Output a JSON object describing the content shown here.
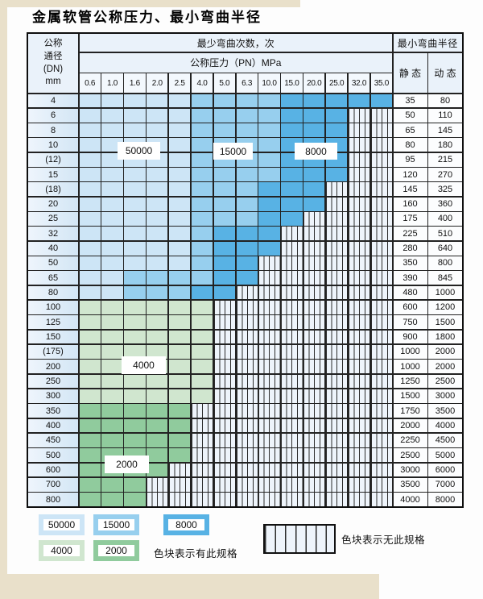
{
  "title": "金属软管公称压力、最小弯曲半径",
  "table": {
    "header": {
      "dn_lines": [
        "公称",
        "通径",
        "(DN)",
        "mm"
      ],
      "bend_cycles_label": "最少弯曲次数，次",
      "pressure_label": "公称压力（PN）MPa",
      "pressure_values": [
        "0.6",
        "1.0",
        "1.6",
        "2.0",
        "2.5",
        "4.0",
        "5.0",
        "6.3",
        "10.0",
        "15.0",
        "20.0",
        "25.0",
        "32.0",
        "35.0"
      ],
      "radius_label": "最小弯曲半径",
      "static_label": "静 态",
      "dynamic_label": "动 态"
    },
    "cell_codes": {
      "L": "50000",
      "M": "15000",
      "D": "8000",
      "g": "4000",
      "G": "2000",
      "H": "no-spec"
    },
    "rows": [
      {
        "dn": "4",
        "cells": "LLLLLMMMMDDDDD",
        "static": "35",
        "dynamic": "80"
      },
      {
        "dn": "6",
        "cells": "LLLLLMMMMDDDHH",
        "static": "50",
        "dynamic": "110"
      },
      {
        "dn": "8",
        "cells": "LLLLLMMMMDDDHH",
        "static": "65",
        "dynamic": "145"
      },
      {
        "dn": "10",
        "cells": "LLLLLMMMMDDDHH",
        "static": "80",
        "dynamic": "180"
      },
      {
        "dn": "(12)",
        "cells": "LLLLLMMMMDDDHH",
        "static": "95",
        "dynamic": "215"
      },
      {
        "dn": "15",
        "cells": "LLLLLMMMMDDDHH",
        "static": "120",
        "dynamic": "270"
      },
      {
        "dn": "(18)",
        "cells": "LLLLLMMMDDDHHH",
        "static": "145",
        "dynamic": "325"
      },
      {
        "dn": "20",
        "cells": "LLLLLMMMDDDHHH",
        "static": "160",
        "dynamic": "360"
      },
      {
        "dn": "25",
        "cells": "LLLLLMMMDDHHHH",
        "static": "175",
        "dynamic": "400"
      },
      {
        "dn": "32",
        "cells": "LLLLLMDDDHHHHH",
        "static": "225",
        "dynamic": "510"
      },
      {
        "dn": "40",
        "cells": "LLLLLMDDDHHHHH",
        "static": "280",
        "dynamic": "640"
      },
      {
        "dn": "50",
        "cells": "LLLLLMDDHHHHHH",
        "static": "350",
        "dynamic": "800"
      },
      {
        "dn": "65",
        "cells": "LLMMMMDDHHHHHH",
        "static": "390",
        "dynamic": "845"
      },
      {
        "dn": "80",
        "cells": "LLMMMDDHHHHHHH",
        "static": "480",
        "dynamic": "1000"
      },
      {
        "dn": "100",
        "cells": "ggggggHHHHHHHH",
        "static": "600",
        "dynamic": "1200"
      },
      {
        "dn": "125",
        "cells": "ggggggHHHHHHHH",
        "static": "750",
        "dynamic": "1500"
      },
      {
        "dn": "150",
        "cells": "ggggggHHHHHHHH",
        "static": "900",
        "dynamic": "1800"
      },
      {
        "dn": "(175)",
        "cells": "ggggggHHHHHHHH",
        "static": "1000",
        "dynamic": "2000"
      },
      {
        "dn": "200",
        "cells": "ggggggHHHHHHHH",
        "static": "1000",
        "dynamic": "2000"
      },
      {
        "dn": "250",
        "cells": "ggggggHHHHHHHH",
        "static": "1250",
        "dynamic": "2500"
      },
      {
        "dn": "300",
        "cells": "ggggggHHHHHHHH",
        "static": "1500",
        "dynamic": "3000"
      },
      {
        "dn": "350",
        "cells": "GGGGGHHHHHHHHH",
        "static": "1750",
        "dynamic": "3500"
      },
      {
        "dn": "400",
        "cells": "GGGGGHHHHHHHHH",
        "static": "2000",
        "dynamic": "4000"
      },
      {
        "dn": "450",
        "cells": "GGGGGHHHHHHHHH",
        "static": "2250",
        "dynamic": "4500"
      },
      {
        "dn": "500",
        "cells": "GGGGGHHHHHHHHH",
        "static": "2500",
        "dynamic": "5000"
      },
      {
        "dn": "600",
        "cells": "GGGGHHHHHHHHHH",
        "static": "3000",
        "dynamic": "6000"
      },
      {
        "dn": "700",
        "cells": "GGGHHHHHHHHHHH",
        "static": "3500",
        "dynamic": "7000"
      },
      {
        "dn": "800",
        "cells": "GGGHHHHHHHHHHH",
        "static": "4000",
        "dynamic": "8000"
      }
    ]
  },
  "overlay_labels": {
    "l50000": "50000",
    "l15000": "15000",
    "l8000": "8000",
    "l4000": "4000",
    "l2000": "2000"
  },
  "legend": {
    "items": [
      {
        "value": "50000",
        "band": "L"
      },
      {
        "value": "15000",
        "band": "M"
      },
      {
        "value": "8000",
        "band": "D"
      },
      {
        "value": "4000",
        "band": "g"
      },
      {
        "value": "2000",
        "band": "G"
      }
    ],
    "has_spec_text": "色块表示有此规格",
    "no_spec_text": "色块表示无此规格"
  },
  "colors": {
    "band_50000": "#cde5f6",
    "band_15000": "#97cfee",
    "band_8000": "#58b2e4",
    "band_4000": "#d0e6cf",
    "band_2000": "#90cb9d",
    "hatch_bg": "#eef4fb",
    "header_bg": "#eaf2fa",
    "pressure_row_bg": "#f3f8fd",
    "page_edge": "#e9e0ca"
  }
}
